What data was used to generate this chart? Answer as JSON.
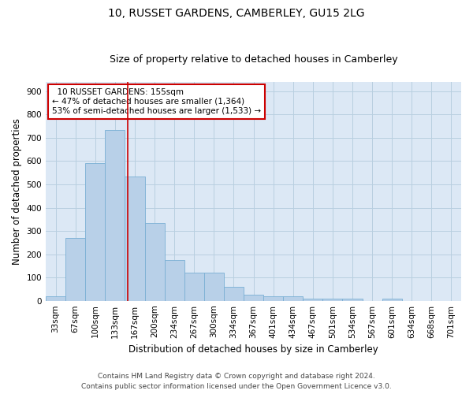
{
  "title": "10, RUSSET GARDENS, CAMBERLEY, GU15 2LG",
  "subtitle": "Size of property relative to detached houses in Camberley",
  "xlabel": "Distribution of detached houses by size in Camberley",
  "ylabel": "Number of detached properties",
  "bar_labels": [
    "33sqm",
    "67sqm",
    "100sqm",
    "133sqm",
    "167sqm",
    "200sqm",
    "234sqm",
    "267sqm",
    "300sqm",
    "334sqm",
    "367sqm",
    "401sqm",
    "434sqm",
    "467sqm",
    "501sqm",
    "534sqm",
    "567sqm",
    "601sqm",
    "634sqm",
    "668sqm",
    "701sqm"
  ],
  "bar_values": [
    20,
    270,
    590,
    735,
    535,
    335,
    175,
    120,
    120,
    60,
    25,
    20,
    20,
    8,
    8,
    8,
    0,
    8,
    0,
    0,
    0
  ],
  "bar_color": "#b8d0e8",
  "bar_edge_color": "#7aafd4",
  "bar_edge_width": 0.6,
  "property_sqm": 155,
  "property_label": "10 RUSSET GARDENS: 155sqm",
  "pct_smaller": 47,
  "n_smaller": 1364,
  "pct_larger": 53,
  "n_larger": 1533,
  "annotation_box_color": "#ffffff",
  "annotation_box_edge": "#cc0000",
  "line_color": "#cc0000",
  "vline_x_index": 3.64,
  "ylim": [
    0,
    940
  ],
  "yticks": [
    0,
    100,
    200,
    300,
    400,
    500,
    600,
    700,
    800,
    900
  ],
  "footer_line1": "Contains HM Land Registry data © Crown copyright and database right 2024.",
  "footer_line2": "Contains public sector information licensed under the Open Government Licence v3.0.",
  "bg_color": "#ffffff",
  "plot_bg_color": "#dce8f5",
  "grid_color": "#b8cfe0",
  "title_fontsize": 10,
  "subtitle_fontsize": 9,
  "axis_label_fontsize": 8.5,
  "tick_fontsize": 7.5,
  "annotation_fontsize": 7.5,
  "footer_fontsize": 6.5
}
